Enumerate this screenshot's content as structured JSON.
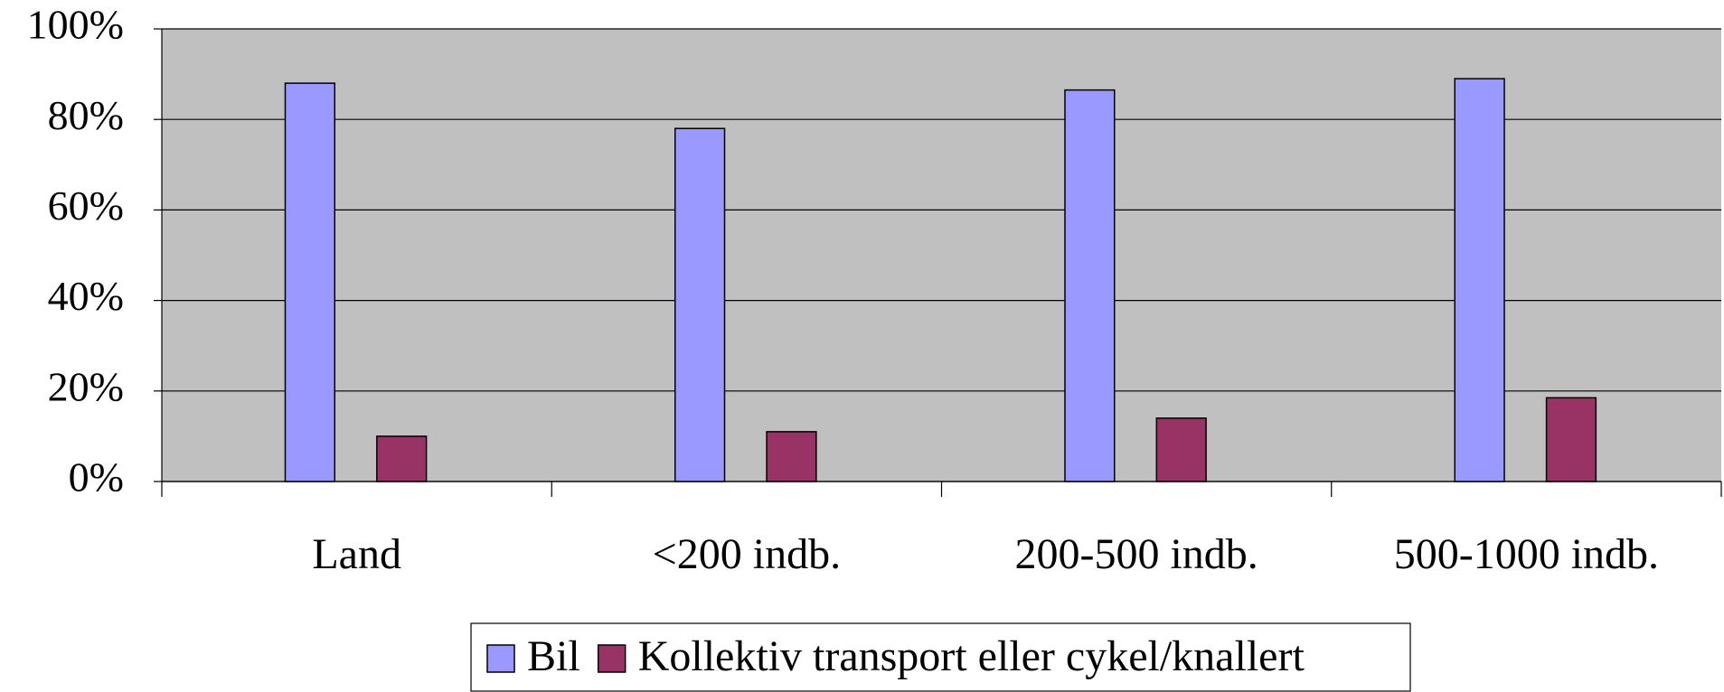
{
  "chart_data": {
    "type": "bar",
    "categories": [
      "Land",
      "<200 indb.",
      "200-500 indb.",
      "500-1000 indb."
    ],
    "series": [
      {
        "name": "Bil",
        "color": "#9999ff",
        "values": [
          88,
          78,
          86.5,
          89
        ]
      },
      {
        "name": "Kollektiv transport eller cykel/knallert",
        "color": "#993366",
        "values": [
          10,
          11,
          14,
          18.5
        ]
      }
    ],
    "ylim": [
      0,
      100
    ],
    "yticks": [
      {
        "value": 0,
        "label": "0%"
      },
      {
        "value": 20,
        "label": "20%"
      },
      {
        "value": 40,
        "label": "40%"
      },
      {
        "value": 60,
        "label": "60%"
      },
      {
        "value": 80,
        "label": "80%"
      },
      {
        "value": 100,
        "label": "100%"
      }
    ],
    "grid": true,
    "legend": "bottom"
  }
}
